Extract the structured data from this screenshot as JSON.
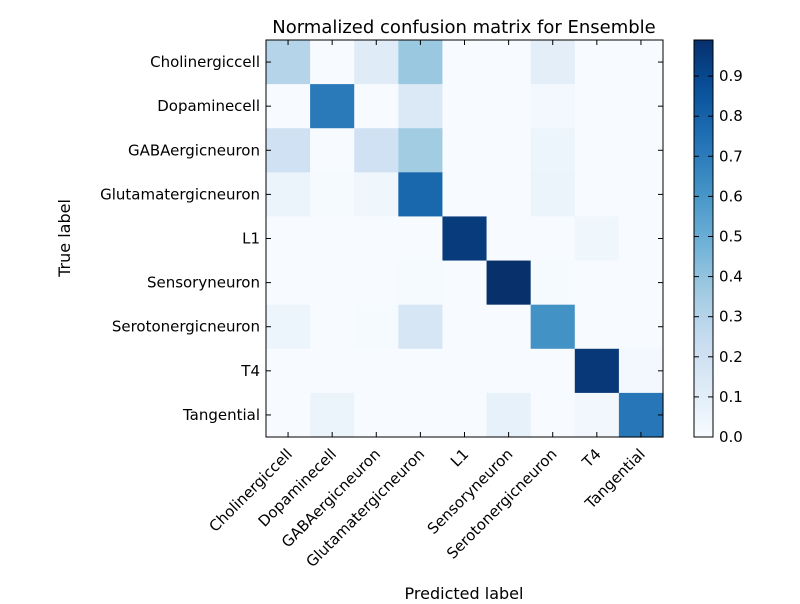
{
  "chart_data": {
    "type": "heatmap",
    "title": "Normalized confusion matrix for Ensemble",
    "xlabel": "Predicted label",
    "ylabel": "True label",
    "row_labels": [
      "Cholinergiccell",
      "Dopaminecell",
      "GABAergicneuron",
      "Glutamatergicneuron",
      "L1",
      "Sensoryneuron",
      "Serotonergicneuron",
      "T4",
      "Tangential"
    ],
    "col_labels": [
      "Cholinergiccell",
      "Dopaminecell",
      "GABAergicneuron",
      "Glutamatergicneuron",
      "L1",
      "Sensoryneuron",
      "Serotonergicneuron",
      "T4",
      "Tangential"
    ],
    "values": [
      [
        0.3,
        0.0,
        0.12,
        0.38,
        0.0,
        0.0,
        0.1,
        0.0,
        0.0
      ],
      [
        0.0,
        0.71,
        0.0,
        0.14,
        0.0,
        0.0,
        0.02,
        0.0,
        0.0
      ],
      [
        0.2,
        0.0,
        0.2,
        0.36,
        0.0,
        0.0,
        0.05,
        0.0,
        0.0
      ],
      [
        0.06,
        0.01,
        0.04,
        0.78,
        0.0,
        0.0,
        0.06,
        0.0,
        0.0
      ],
      [
        0.0,
        0.0,
        0.0,
        0.0,
        0.95,
        0.0,
        0.0,
        0.04,
        0.0
      ],
      [
        0.0,
        0.0,
        0.0,
        0.01,
        0.0,
        0.99,
        0.01,
        0.0,
        0.0
      ],
      [
        0.05,
        0.0,
        0.01,
        0.16,
        0.0,
        0.0,
        0.62,
        0.0,
        0.0
      ],
      [
        0.0,
        0.0,
        0.0,
        0.0,
        0.0,
        0.0,
        0.0,
        0.96,
        0.02
      ],
      [
        0.0,
        0.06,
        0.0,
        0.0,
        0.0,
        0.08,
        0.0,
        0.03,
        0.72
      ]
    ],
    "colormap": "Blues",
    "colorbar_ticks": [
      "0.0",
      "0.1",
      "0.2",
      "0.3",
      "0.4",
      "0.5",
      "0.6",
      "0.7",
      "0.8",
      "0.9"
    ],
    "colorbar_range": [
      0,
      0.99
    ],
    "colors": {
      "low": "#f7fbff",
      "high": "#08306b"
    }
  }
}
